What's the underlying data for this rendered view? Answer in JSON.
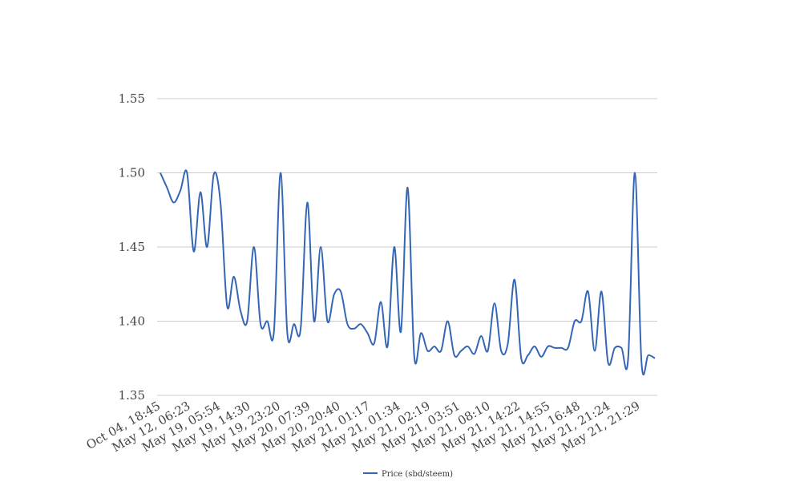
{
  "chart_data": {
    "type": "line",
    "title": "",
    "xlabel": "",
    "ylabel": "",
    "ylim": [
      1.35,
      1.55
    ],
    "yticks": [
      "1.35",
      "1.40",
      "1.45",
      "1.50",
      "1.55"
    ],
    "xticks": [
      "Oct 04, 18:45",
      "May 12, 06:23",
      "May 19, 05:54",
      "May 19, 14:30",
      "May 19, 23:20",
      "May 20, 07:39",
      "May 20, 20:40",
      "May 21, 01:17",
      "May 21, 01:34",
      "May 21, 02:19",
      "May 21, 03:51",
      "May 21, 08:10",
      "May 21, 14:22",
      "May 21, 14:55",
      "May 21, 16:48",
      "May 21, 21:24",
      "May 21, 21:29"
    ],
    "grid": true,
    "legend_position": "bottom-center",
    "series": [
      {
        "name": "Price (sbd/steem)",
        "color": "#3566b5",
        "values": [
          1.5,
          1.49,
          1.48,
          1.488,
          1.5,
          1.447,
          1.487,
          1.45,
          1.499,
          1.48,
          1.41,
          1.43,
          1.407,
          1.4,
          1.45,
          1.398,
          1.4,
          1.393,
          1.5,
          1.392,
          1.398,
          1.395,
          1.48,
          1.4,
          1.45,
          1.4,
          1.418,
          1.42,
          1.398,
          1.395,
          1.398,
          1.392,
          1.385,
          1.413,
          1.383,
          1.45,
          1.393,
          1.49,
          1.376,
          1.392,
          1.38,
          1.383,
          1.38,
          1.4,
          1.377,
          1.38,
          1.383,
          1.378,
          1.39,
          1.38,
          1.412,
          1.38,
          1.385,
          1.428,
          1.375,
          1.377,
          1.383,
          1.376,
          1.383,
          1.382,
          1.382,
          1.382,
          1.4,
          1.4,
          1.42,
          1.38,
          1.42,
          1.372,
          1.382,
          1.382,
          1.375,
          1.5,
          1.372,
          1.377,
          1.375
        ]
      }
    ]
  }
}
